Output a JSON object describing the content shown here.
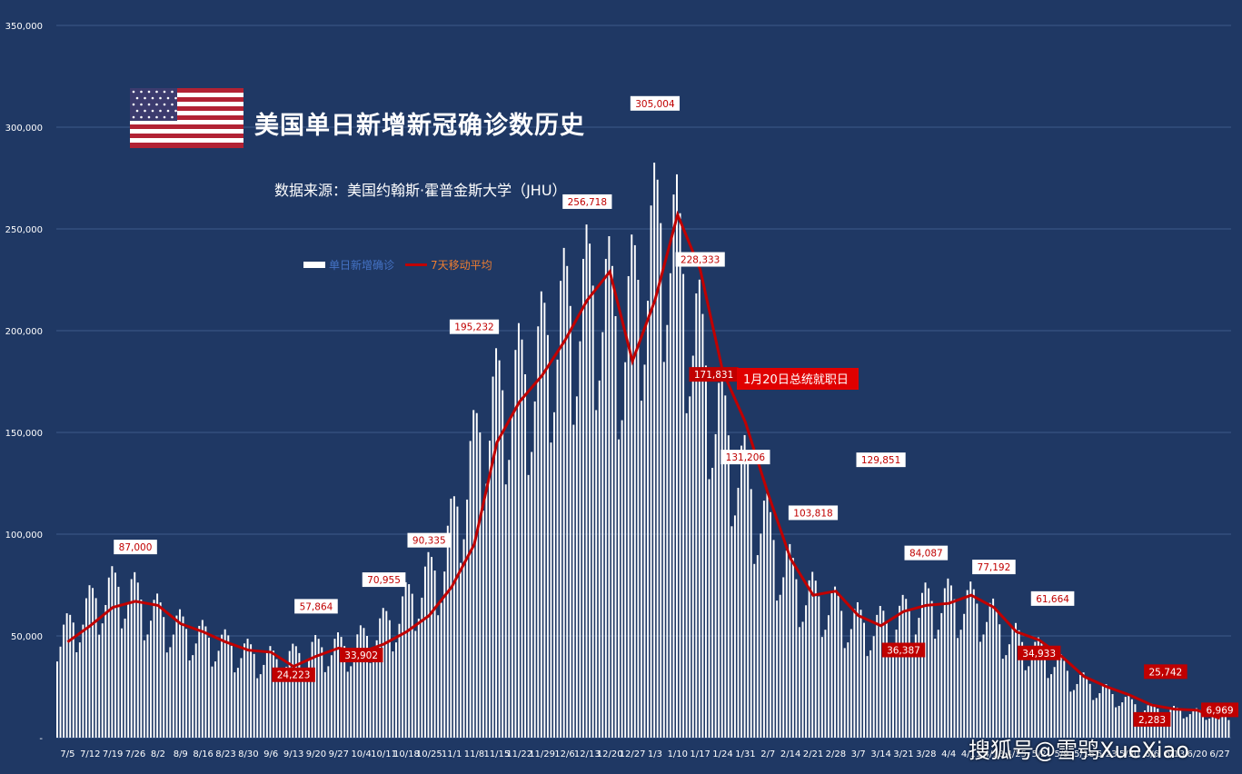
{
  "header": {
    "title": "美国单日新增新冠确诊数历史",
    "source": "数据来源：美国约翰斯·霍普金斯大学（JHU）"
  },
  "legend": {
    "bar_label": "单日新增确诊",
    "line_label": "7天移动平均"
  },
  "event_label": "1月20日总统就职日",
  "watermark": "搜狐号@雪鸮XueXiao",
  "colors": {
    "background": "#1f3864",
    "bars": "#ffffff",
    "average_line": "#c00000",
    "legend_bar_text": "#4472c4",
    "legend_line_text": "#ed7d31"
  },
  "chart_data": {
    "type": "bar",
    "yaxis": {
      "min": 0,
      "max": 350000,
      "step": 50000,
      "ticks": [
        "-",
        "50,000",
        "100,000",
        "150,000",
        "200,000",
        "250,000",
        "300,000",
        "350,000"
      ]
    },
    "grid": true,
    "x_ticks": [
      "7/5",
      "7/12",
      "7/19",
      "7/26",
      "8/2",
      "8/9",
      "8/16",
      "8/23",
      "8/30",
      "9/6",
      "9/13",
      "9/20",
      "9/27",
      "10/4",
      "10/11",
      "10/18",
      "10/25",
      "11/1",
      "11/8",
      "11/15",
      "11/22",
      "11/29",
      "12/6",
      "12/13",
      "12/20",
      "12/27",
      "1/3",
      "1/10",
      "1/17",
      "1/24",
      "1/31",
      "2/7",
      "2/14",
      "2/21",
      "2/28",
      "3/7",
      "3/14",
      "3/21",
      "3/28",
      "4/4",
      "4/11",
      "4/18",
      "4/25",
      "5/2",
      "5/9",
      "5/16",
      "5/23",
      "5/30",
      "6/6",
      "6/13",
      "6/20",
      "6/27"
    ],
    "weekly_daily_values": [
      48000,
      60000,
      72000,
      75000,
      65000,
      57000,
      52000,
      48000,
      44000,
      40000,
      38000,
      43000,
      45000,
      45000,
      52000,
      60000,
      75000,
      85000,
      125000,
      160000,
      175000,
      180000,
      205000,
      215000,
      225000,
      200000,
      235000,
      260000,
      215000,
      170000,
      140000,
      115000,
      90000,
      73000,
      68000,
      60000,
      55000,
      58000,
      65000,
      68000,
      68000,
      65000,
      52000,
      45000,
      40000,
      30000,
      25000,
      20000,
      15000,
      14000,
      13000,
      12000
    ],
    "moving_average": [
      47000,
      55000,
      64000,
      67000,
      65000,
      56000,
      52000,
      47000,
      43000,
      42000,
      35000,
      40000,
      44000,
      42000,
      46000,
      52000,
      60000,
      74000,
      95000,
      145000,
      165000,
      178000,
      195000,
      215000,
      229000,
      185000,
      215000,
      257000,
      230000,
      180000,
      155000,
      120000,
      88000,
      70000,
      72000,
      60000,
      55000,
      62000,
      65000,
      66000,
      70000,
      64000,
      52000,
      48000,
      40000,
      30000,
      25000,
      21000,
      16000,
      14000,
      13500,
      9500
    ],
    "annotations": [
      {
        "label": "87,000",
        "x": "7/26",
        "y": 87000
      },
      {
        "label": "24,223",
        "x": "9/13",
        "y": 24223
      },
      {
        "label": "57,864",
        "x": "9/20",
        "y": 57864
      },
      {
        "label": "33,902",
        "x": "10/4",
        "y": 33902
      },
      {
        "label": "70,955",
        "x": "10/11",
        "y": 70955
      },
      {
        "label": "90,335",
        "x": "10/25",
        "y": 90335
      },
      {
        "label": "195,232",
        "x": "11/8",
        "y": 195232
      },
      {
        "label": "256,718",
        "x": "12/13",
        "y": 256718
      },
      {
        "label": "305,004",
        "x": "1/3",
        "y": 305004
      },
      {
        "label": "228,333",
        "x": "1/17",
        "y": 228333
      },
      {
        "label": "171,831",
        "x": "1/17",
        "y": 171831
      },
      {
        "label": "131,206",
        "x": "1/31",
        "y": 131206
      },
      {
        "label": "103,818",
        "x": "2/21",
        "y": 103818
      },
      {
        "label": "129,851",
        "x": "3/14",
        "y": 129851
      },
      {
        "label": "36,387",
        "x": "3/21",
        "y": 36387
      },
      {
        "label": "84,087",
        "x": "3/28",
        "y": 84087
      },
      {
        "label": "77,192",
        "x": "4/18",
        "y": 77192
      },
      {
        "label": "34,933",
        "x": "5/2",
        "y": 34933
      },
      {
        "label": "61,664",
        "x": "5/2",
        "y": 61664
      },
      {
        "label": "2,283",
        "x": "6/6",
        "y": 2283
      },
      {
        "label": "25,742",
        "x": "6/6",
        "y": 25742
      },
      {
        "label": "6,969",
        "x": "6/27",
        "y": 6969
      }
    ]
  }
}
